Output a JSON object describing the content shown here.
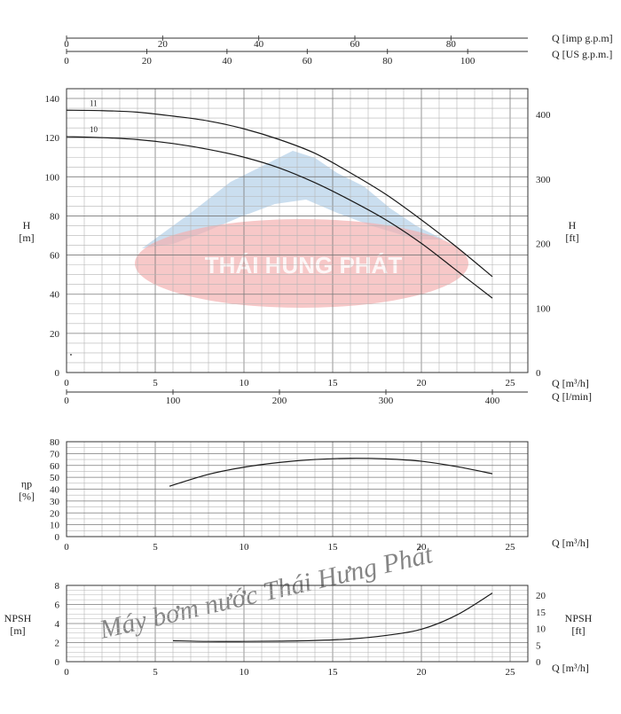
{
  "watermark": {
    "logo_text": "THÁI HUNG PHÁT",
    "diagonal_text": "Máy bơm nước Thái Hưng Phát",
    "colors": {
      "ellipse": "#f3b0b0",
      "mountain": "#b8d3ea",
      "text": "#f2c6c6"
    }
  },
  "top_axes": {
    "imp": {
      "label": "Q [imp g.p.m]",
      "ticks": [
        "0",
        "20",
        "40",
        "60",
        "80"
      ],
      "values": [
        0,
        20,
        40,
        60,
        80
      ],
      "max_value": 96
    },
    "us": {
      "label": "Q [US g.p.m.]",
      "ticks": [
        "0",
        "20",
        "40",
        "60",
        "80",
        "100"
      ],
      "values": [
        0,
        20,
        40,
        60,
        80,
        100
      ],
      "max_value": 115
    }
  },
  "chart_data": [
    {
      "type": "line",
      "name": "head",
      "xlabel": "Q [m³/h]",
      "x2label": "Q [l/min]",
      "ylabel": "H\n[m]",
      "y2label": "H\n[ft]",
      "xlim": [
        0,
        26
      ],
      "ylim": [
        0,
        145
      ],
      "x_ticks": [
        0,
        5,
        10,
        15,
        20,
        25
      ],
      "x2_ticks": [
        0,
        100,
        200,
        300,
        400
      ],
      "y_ticks": [
        0,
        20,
        40,
        60,
        80,
        100,
        120,
        140
      ],
      "y2_ticks": [
        0,
        100,
        200,
        300,
        400
      ],
      "grid": true,
      "series": [
        {
          "name": "11",
          "x": [
            0,
            2,
            4,
            6,
            8,
            10,
            12,
            14,
            16,
            18,
            20,
            22,
            24
          ],
          "y": [
            134,
            133.8,
            133,
            131,
            128.5,
            124.5,
            119,
            112,
            102,
            91,
            78,
            64,
            49
          ]
        },
        {
          "name": "10",
          "x": [
            0,
            2,
            4,
            6,
            8,
            10,
            12,
            14,
            16,
            18,
            20,
            22,
            24
          ],
          "y": [
            120.5,
            120,
            119,
            117,
            114,
            110,
            104.5,
            97,
            88,
            78,
            66,
            52,
            38
          ]
        }
      ],
      "annotations": [
        {
          "text": "•",
          "x": 0.15,
          "y": 8
        }
      ]
    },
    {
      "type": "line",
      "name": "efficiency",
      "xlabel": "Q [m³/h]",
      "ylabel": "ηp\n[%]",
      "xlim": [
        0,
        26
      ],
      "ylim": [
        0,
        80
      ],
      "x_ticks": [
        0,
        5,
        10,
        15,
        20,
        25
      ],
      "y_ticks": [
        0,
        10,
        20,
        30,
        40,
        50,
        60,
        70,
        80
      ],
      "grid": true,
      "series": [
        {
          "name": "",
          "x": [
            5.8,
            8,
            10,
            12,
            14,
            16,
            18,
            20,
            22,
            24
          ],
          "y": [
            42.5,
            52.5,
            58.5,
            62.5,
            65,
            66,
            65.5,
            63.5,
            59,
            53
          ]
        }
      ]
    },
    {
      "type": "line",
      "name": "npsh",
      "xlabel": "Q [m³/h]",
      "ylabel": "NPSH\n[m]",
      "y2label": "NPSH\n[ft]",
      "xlim": [
        0,
        26
      ],
      "ylim": [
        0,
        8
      ],
      "x_ticks": [
        0,
        5,
        10,
        15,
        20,
        25
      ],
      "y_ticks": [
        0,
        2,
        4,
        6,
        8
      ],
      "y2_ticks": [
        0,
        5,
        10,
        15,
        20
      ],
      "grid": true,
      "series": [
        {
          "name": "",
          "x": [
            6,
            8,
            10,
            12,
            14,
            16,
            18,
            20,
            22,
            24
          ],
          "y": [
            2.2,
            2.12,
            2.12,
            2.15,
            2.22,
            2.38,
            2.75,
            3.4,
            4.9,
            7.2
          ]
        }
      ]
    }
  ]
}
